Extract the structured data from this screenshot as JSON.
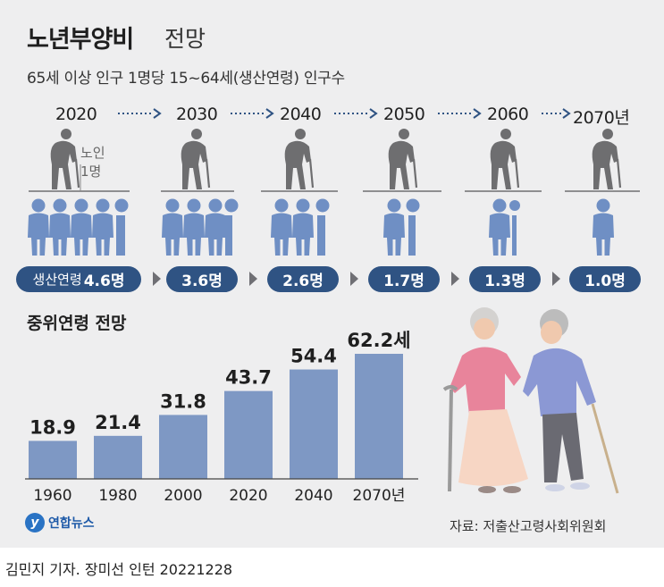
{
  "header": {
    "title_bold": "노년부양비",
    "title_light": "전망",
    "subtitle": "65세 이상 인구 1명당 15~64세(생산연령) 인구수"
  },
  "projection": {
    "senior_label_line1": "노인",
    "senior_label_line2": "1명",
    "badge_prefix": "생산연령",
    "items": [
      {
        "year": "2020",
        "value": 4.6,
        "label": "4.6명"
      },
      {
        "year": "2030",
        "value": 3.6,
        "label": "3.6명"
      },
      {
        "year": "2040",
        "value": 2.6,
        "label": "2.6명"
      },
      {
        "year": "2050",
        "value": 1.7,
        "label": "1.7명"
      },
      {
        "year": "2060",
        "value": 1.3,
        "label": "1.3명"
      },
      {
        "year": "2070년",
        "value": 1.0,
        "label": "1.0명"
      }
    ]
  },
  "median": {
    "title": "중위연령 전망"
  },
  "chart_data": {
    "type": "bar",
    "title": "중위연령 전망",
    "categories": [
      "1960",
      "1980",
      "2000",
      "2020",
      "2040",
      "2070년"
    ],
    "values": [
      18.9,
      21.4,
      31.8,
      43.7,
      54.4,
      62.2
    ],
    "value_labels": [
      "18.9",
      "21.4",
      "31.8",
      "43.7",
      "54.4",
      "62.2세"
    ],
    "ylim": [
      0,
      70
    ],
    "grid": false,
    "bar_color": "#7e98c4"
  },
  "footer": {
    "logo_text": "연합뉴스",
    "source": "자료: 저출산고령사회위원회",
    "credit": "김민지 기자. 장미선 인턴  20221228"
  },
  "colors": {
    "background": "#eeeeef",
    "person_blue": "#6f8fc4",
    "senior_gray": "#6e6e70",
    "badge": "#2f5383",
    "arrow": "#2f5383"
  }
}
